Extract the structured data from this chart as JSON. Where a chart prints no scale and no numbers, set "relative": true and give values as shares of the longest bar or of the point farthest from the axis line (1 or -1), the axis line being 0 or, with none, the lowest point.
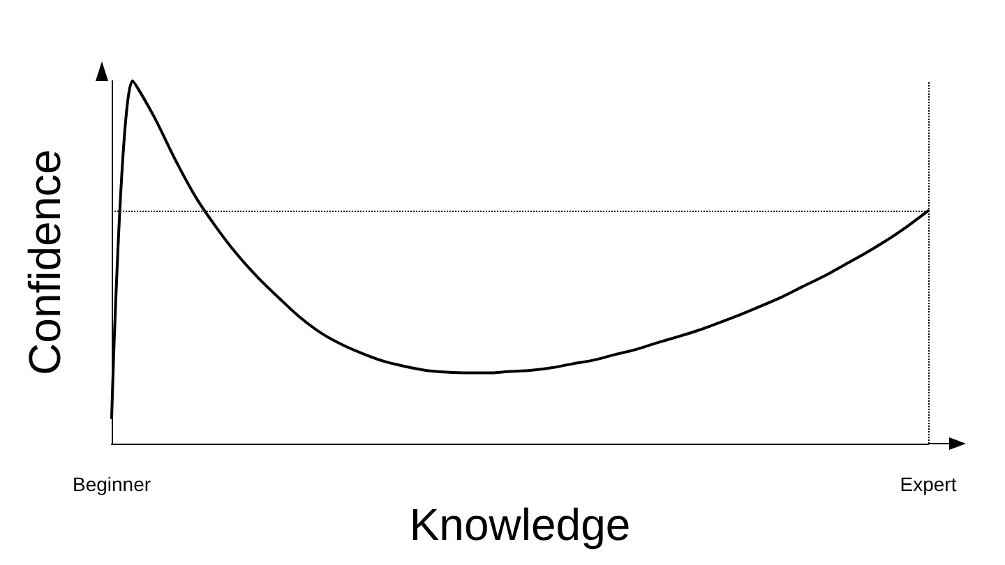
{
  "chart_data": {
    "type": "line",
    "relative": true,
    "xlabel": "Knowledge",
    "ylabel": "Confidence",
    "categories": [
      "Beginner",
      null,
      null,
      null,
      null,
      null,
      null,
      null,
      null,
      null,
      null,
      null,
      null,
      null,
      null,
      null,
      null,
      null,
      null,
      null,
      null,
      null,
      null,
      null,
      null,
      null,
      null,
      null,
      null,
      null,
      null,
      null,
      null,
      null,
      null,
      null,
      null,
      null,
      null,
      "Expert"
    ],
    "series": [
      {
        "color": "#000000",
        "values": [
          0.071,
          1.0,
          0.904,
          0.787,
          0.681,
          0.596,
          0.521,
          0.457,
          0.401,
          0.348,
          0.305,
          0.273,
          0.248,
          0.227,
          0.213,
          0.202,
          0.197,
          0.195,
          0.195,
          0.199,
          0.202,
          0.209,
          0.22,
          0.23,
          0.245,
          0.259,
          0.277,
          0.294,
          0.312,
          0.333,
          0.355,
          0.379,
          0.404,
          0.433,
          0.461,
          0.493,
          0.525,
          0.56,
          0.599,
          0.642
        ]
      }
    ],
    "ref_lines": [
      {
        "axis": "y",
        "value": 0.642,
        "line_style": "dotted"
      },
      {
        "axis": "x",
        "value": "Expert",
        "line_style": "dotted"
      }
    ],
    "marker": "none",
    "line_style": "solid",
    "grid": false
  }
}
